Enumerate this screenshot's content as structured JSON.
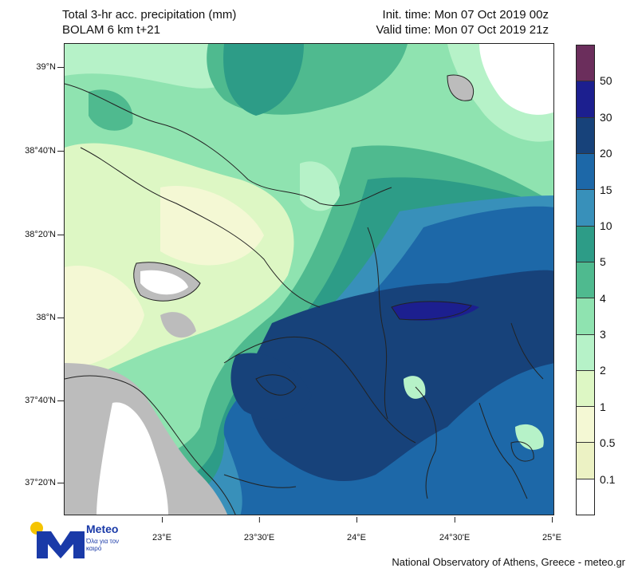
{
  "header": {
    "title_line1": "Total 3-hr acc. precipitation (mm)",
    "title_line2": "BOLAM 6 km t+21",
    "init_time": "Init. time: Mon 07 Oct 2019 00z",
    "valid_time": "Valid time: Mon 07 Oct 2019 21z"
  },
  "axes": {
    "lat_labels": [
      "39°N",
      "38°40'N",
      "38°20'N",
      "38°N",
      "37°40'N",
      "37°20'N"
    ],
    "lon_labels": [
      "23°E",
      "23°30'E",
      "24°E",
      "24°30'E",
      "25°E"
    ]
  },
  "colorbar": {
    "labels": [
      "50",
      "30",
      "20",
      "15",
      "10",
      "5",
      "4",
      "3",
      "2",
      "1",
      "0.5",
      "0.1"
    ],
    "colors": [
      "#6b2e5c",
      "#1c1f8f",
      "#17427a",
      "#1d68a8",
      "#3890ba",
      "#2d9c87",
      "#4fba8f",
      "#8fe3b0",
      "#b6f2c8",
      "#ddf7c4",
      "#f4f8d4",
      "#ecf2c4",
      "#ffffff"
    ]
  },
  "branding": {
    "logo_name": "Meteo",
    "logo_subtitle": "Όλα για τον καιρό"
  },
  "footer": {
    "credit": "National Observatory of Athens, Greece - meteo.gr"
  }
}
